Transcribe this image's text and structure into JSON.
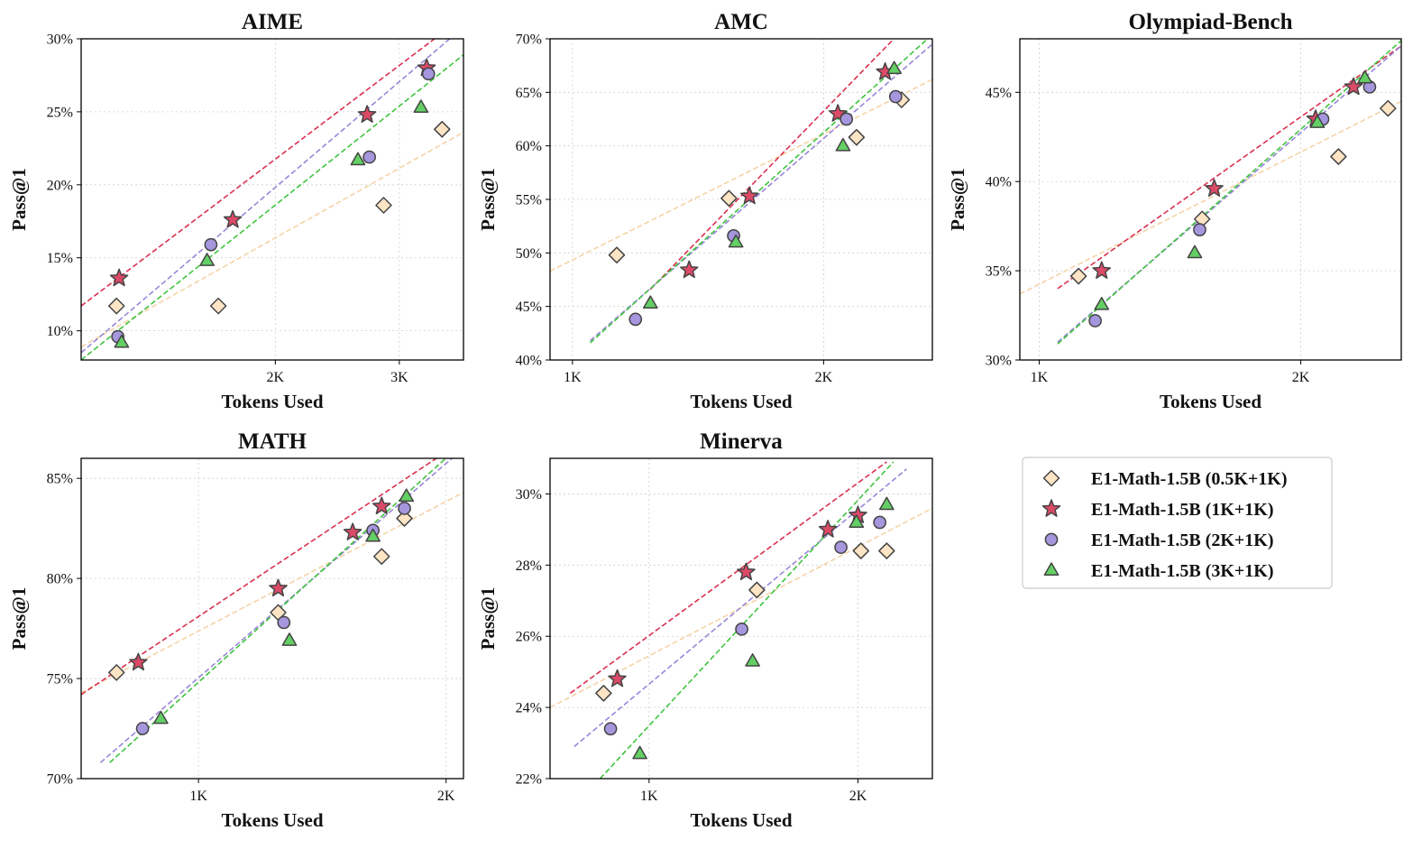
{
  "legend": {
    "entries": [
      {
        "name": "E1-Math-1.5B (0.5K+1K)",
        "marker": "diamond",
        "color": "#fde4c4",
        "line_color": "#f5d3a8"
      },
      {
        "name": "E1-Math-1.5B (1K+1K)",
        "marker": "star",
        "color": "#dc4a68",
        "line_color": "#d9304f"
      },
      {
        "name": "E1-Math-1.5B (2K+1K)",
        "marker": "circle",
        "color": "#a596dd",
        "line_color": "#9a86d9"
      },
      {
        "name": "E1-Math-1.5B (3K+1K)",
        "marker": "triangle",
        "color": "#63cf64",
        "line_color": "#3fc43f"
      }
    ]
  },
  "chart_data": [
    {
      "type": "scatter",
      "title": "AIME",
      "xlabel": "Tokens Used",
      "ylabel": "Pass@1",
      "x_scale": "log",
      "xlim": [
        1060,
        3700
      ],
      "ylim": [
        8,
        30
      ],
      "x_ticks": [
        {
          "value": 2000,
          "label": "2K"
        },
        {
          "value": 3000,
          "label": "3K"
        }
      ],
      "y_ticks": [
        {
          "value": 10,
          "label": "10%"
        },
        {
          "value": 15,
          "label": "15%"
        },
        {
          "value": 20,
          "label": "20%"
        },
        {
          "value": 25,
          "label": "25%"
        },
        {
          "value": 30,
          "label": "30%"
        }
      ],
      "grid": true,
      "series": [
        {
          "points": [
            [
              1190,
              11.7
            ],
            [
              1660,
              11.7
            ],
            [
              2850,
              18.6
            ],
            [
              3450,
              23.8
            ]
          ],
          "fit": [
            [
              1060,
              8.9
            ],
            [
              3700,
              23.6
            ]
          ]
        },
        {
          "points": [
            [
              1200,
              13.6
            ],
            [
              1740,
              17.6
            ],
            [
              2700,
              24.8
            ],
            [
              3280,
              28.0
            ]
          ],
          "fit": [
            [
              1060,
              11.7
            ],
            [
              3700,
              31.5
            ]
          ]
        },
        {
          "points": [
            [
              1195,
              9.6
            ],
            [
              1620,
              15.9
            ],
            [
              2720,
              21.9
            ],
            [
              3300,
              27.6
            ]
          ],
          "fit": [
            [
              1060,
              8.5
            ],
            [
              3700,
              30.8
            ]
          ]
        },
        {
          "points": [
            [
              1210,
              9.2
            ],
            [
              1600,
              14.8
            ],
            [
              2620,
              21.7
            ],
            [
              3220,
              25.3
            ]
          ],
          "fit": [
            [
              1060,
              8.0
            ],
            [
              3700,
              28.9
            ]
          ]
        }
      ]
    },
    {
      "type": "scatter",
      "title": "AMC",
      "xlabel": "Tokens Used",
      "ylabel": "Pass@1",
      "x_scale": "log",
      "xlim": [
        940,
        2700
      ],
      "ylim": [
        40,
        70
      ],
      "x_ticks": [
        {
          "value": 1000,
          "label": "1K"
        },
        {
          "value": 2000,
          "label": "2K"
        }
      ],
      "y_ticks": [
        {
          "value": 40,
          "label": "40%"
        },
        {
          "value": 45,
          "label": "45%"
        },
        {
          "value": 50,
          "label": "50%"
        },
        {
          "value": 55,
          "label": "55%"
        },
        {
          "value": 60,
          "label": "60%"
        },
        {
          "value": 65,
          "label": "65%"
        },
        {
          "value": 70,
          "label": "70%"
        }
      ],
      "grid": true,
      "series": [
        {
          "points": [
            [
              1130,
              49.8
            ],
            [
              1540,
              55.1
            ],
            [
              2190,
              60.8
            ],
            [
              2480,
              64.3
            ]
          ],
          "fit": [
            [
              940,
              48.3
            ],
            [
              2700,
              66.2
            ]
          ]
        },
        {
          "points": [
            [
              1380,
              48.4
            ],
            [
              1630,
              55.3
            ],
            [
              2080,
              63.0
            ],
            [
              2370,
              66.9
            ]
          ],
          "fit": [
            [
              1240,
              46.6
            ],
            [
              2700,
              73.7
            ]
          ]
        },
        {
          "points": [
            [
              1190,
              43.8
            ],
            [
              1560,
              51.6
            ],
            [
              2130,
              62.5
            ],
            [
              2440,
              64.6
            ]
          ],
          "fit": [
            [
              1050,
              41.8
            ],
            [
              2700,
              69.5
            ]
          ]
        },
        {
          "points": [
            [
              1240,
              45.3
            ],
            [
              1570,
              51.0
            ],
            [
              2110,
              60.0
            ],
            [
              2430,
              67.2
            ]
          ],
          "fit": [
            [
              1050,
              41.6
            ],
            [
              2700,
              70.4
            ]
          ]
        }
      ]
    },
    {
      "type": "scatter",
      "title": "Olympiad-Bench",
      "xlabel": "Tokens Used",
      "ylabel": "Pass@1",
      "x_scale": "log",
      "xlim": [
        950,
        2610
      ],
      "ylim": [
        30,
        48
      ],
      "x_ticks": [
        {
          "value": 1000,
          "label": "1K"
        },
        {
          "value": 2000,
          "label": "2K"
        }
      ],
      "y_ticks": [
        {
          "value": 30,
          "label": "30%"
        },
        {
          "value": 35,
          "label": "35%"
        },
        {
          "value": 40,
          "label": "40%"
        },
        {
          "value": 45,
          "label": "45%"
        }
      ],
      "grid": true,
      "series": [
        {
          "points": [
            [
              1110,
              34.7
            ],
            [
              1540,
              37.9
            ],
            [
              2210,
              41.4
            ],
            [
              2520,
              44.1
            ]
          ],
          "fit": [
            [
              950,
              33.7
            ],
            [
              2610,
              44.5
            ]
          ]
        },
        {
          "points": [
            [
              1180,
              35.0
            ],
            [
              1590,
              39.6
            ],
            [
              2080,
              43.5
            ],
            [
              2300,
              45.3
            ]
          ],
          "fit": [
            [
              1050,
              34.0
            ],
            [
              2610,
              47.6
            ]
          ]
        },
        {
          "points": [
            [
              1160,
              32.2
            ],
            [
              1530,
              37.3
            ],
            [
              2120,
              43.5
            ],
            [
              2400,
              45.3
            ]
          ],
          "fit": [
            [
              1050,
              31.0
            ],
            [
              2610,
              47.6
            ]
          ]
        },
        {
          "points": [
            [
              1180,
              33.1
            ],
            [
              1510,
              36.0
            ],
            [
              2090,
              43.3
            ],
            [
              2370,
              45.8
            ]
          ],
          "fit": [
            [
              1050,
              30.9
            ],
            [
              2610,
              47.9
            ]
          ]
        }
      ]
    },
    {
      "type": "scatter",
      "title": "MATH",
      "xlabel": "Tokens Used",
      "ylabel": "Pass@1",
      "x_scale": "log",
      "xlim": [
        720,
        2100
      ],
      "ylim": [
        70,
        86
      ],
      "x_ticks": [
        {
          "value": 1000,
          "label": "1K"
        },
        {
          "value": 2000,
          "label": "2K"
        }
      ],
      "y_ticks": [
        {
          "value": 70,
          "label": "70%"
        },
        {
          "value": 75,
          "label": "75%"
        },
        {
          "value": 80,
          "label": "80%"
        },
        {
          "value": 85,
          "label": "85%"
        }
      ],
      "grid": true,
      "series": [
        {
          "points": [
            [
              795,
              75.3
            ],
            [
              1250,
              78.3
            ],
            [
              1670,
              81.1
            ],
            [
              1780,
              83.0
            ]
          ],
          "fit": [
            [
              720,
              74.3
            ],
            [
              2100,
              84.3
            ]
          ]
        },
        {
          "points": [
            [
              845,
              75.8
            ],
            [
              1250,
              79.5
            ],
            [
              1540,
              82.3
            ],
            [
              1670,
              83.6
            ]
          ],
          "fit": [
            [
              720,
              74.2
            ],
            [
              2100,
              86.9
            ]
          ]
        },
        {
          "points": [
            [
              855,
              72.5
            ],
            [
              1270,
              77.8
            ],
            [
              1630,
              82.4
            ],
            [
              1780,
              83.5
            ]
          ],
          "fit": [
            [
              760,
              70.8
            ],
            [
              2100,
              86.5
            ]
          ]
        },
        {
          "points": [
            [
              900,
              73.0
            ],
            [
              1290,
              76.9
            ],
            [
              1630,
              82.1
            ],
            [
              1790,
              84.1
            ]
          ],
          "fit": [
            [
              780,
              70.8
            ],
            [
              2100,
              86.8
            ]
          ]
        }
      ]
    },
    {
      "type": "scatter",
      "title": "Minerva",
      "xlabel": "Tokens Used",
      "ylabel": "Pass@1",
      "x_scale": "log",
      "xlim": [
        720,
        2560
      ],
      "ylim": [
        22,
        31
      ],
      "x_ticks": [
        {
          "value": 1000,
          "label": "1K"
        },
        {
          "value": 2000,
          "label": "2K"
        }
      ],
      "y_ticks": [
        {
          "value": 22,
          "label": "22%"
        },
        {
          "value": 24,
          "label": "24%"
        },
        {
          "value": 26,
          "label": "26%"
        },
        {
          "value": 28,
          "label": "28%"
        },
        {
          "value": 30,
          "label": "30%"
        }
      ],
      "grid": true,
      "series": [
        {
          "points": [
            [
              860,
              24.4
            ],
            [
              1430,
              27.3
            ],
            [
              2020,
              28.4
            ],
            [
              2200,
              28.4
            ]
          ],
          "fit": [
            [
              720,
              24.0
            ],
            [
              2560,
              29.6
            ]
          ]
        },
        {
          "points": [
            [
              900,
              24.8
            ],
            [
              1380,
              27.8
            ],
            [
              1810,
              29.0
            ],
            [
              2000,
              29.4
            ]
          ],
          "fit": [
            [
              770,
              24.4
            ],
            [
              2200,
              30.9
            ]
          ]
        },
        {
          "points": [
            [
              880,
              23.4
            ],
            [
              1360,
              26.2
            ],
            [
              1890,
              28.5
            ],
            [
              2150,
              29.2
            ]
          ],
          "fit": [
            [
              780,
              22.9
            ],
            [
              2350,
              30.7
            ]
          ]
        },
        {
          "points": [
            [
              970,
              22.7
            ],
            [
              1410,
              25.3
            ],
            [
              1990,
              29.2
            ],
            [
              2200,
              29.7
            ]
          ],
          "fit": [
            [
              850,
              22.0
            ],
            [
              2250,
              30.9
            ]
          ]
        }
      ]
    }
  ]
}
